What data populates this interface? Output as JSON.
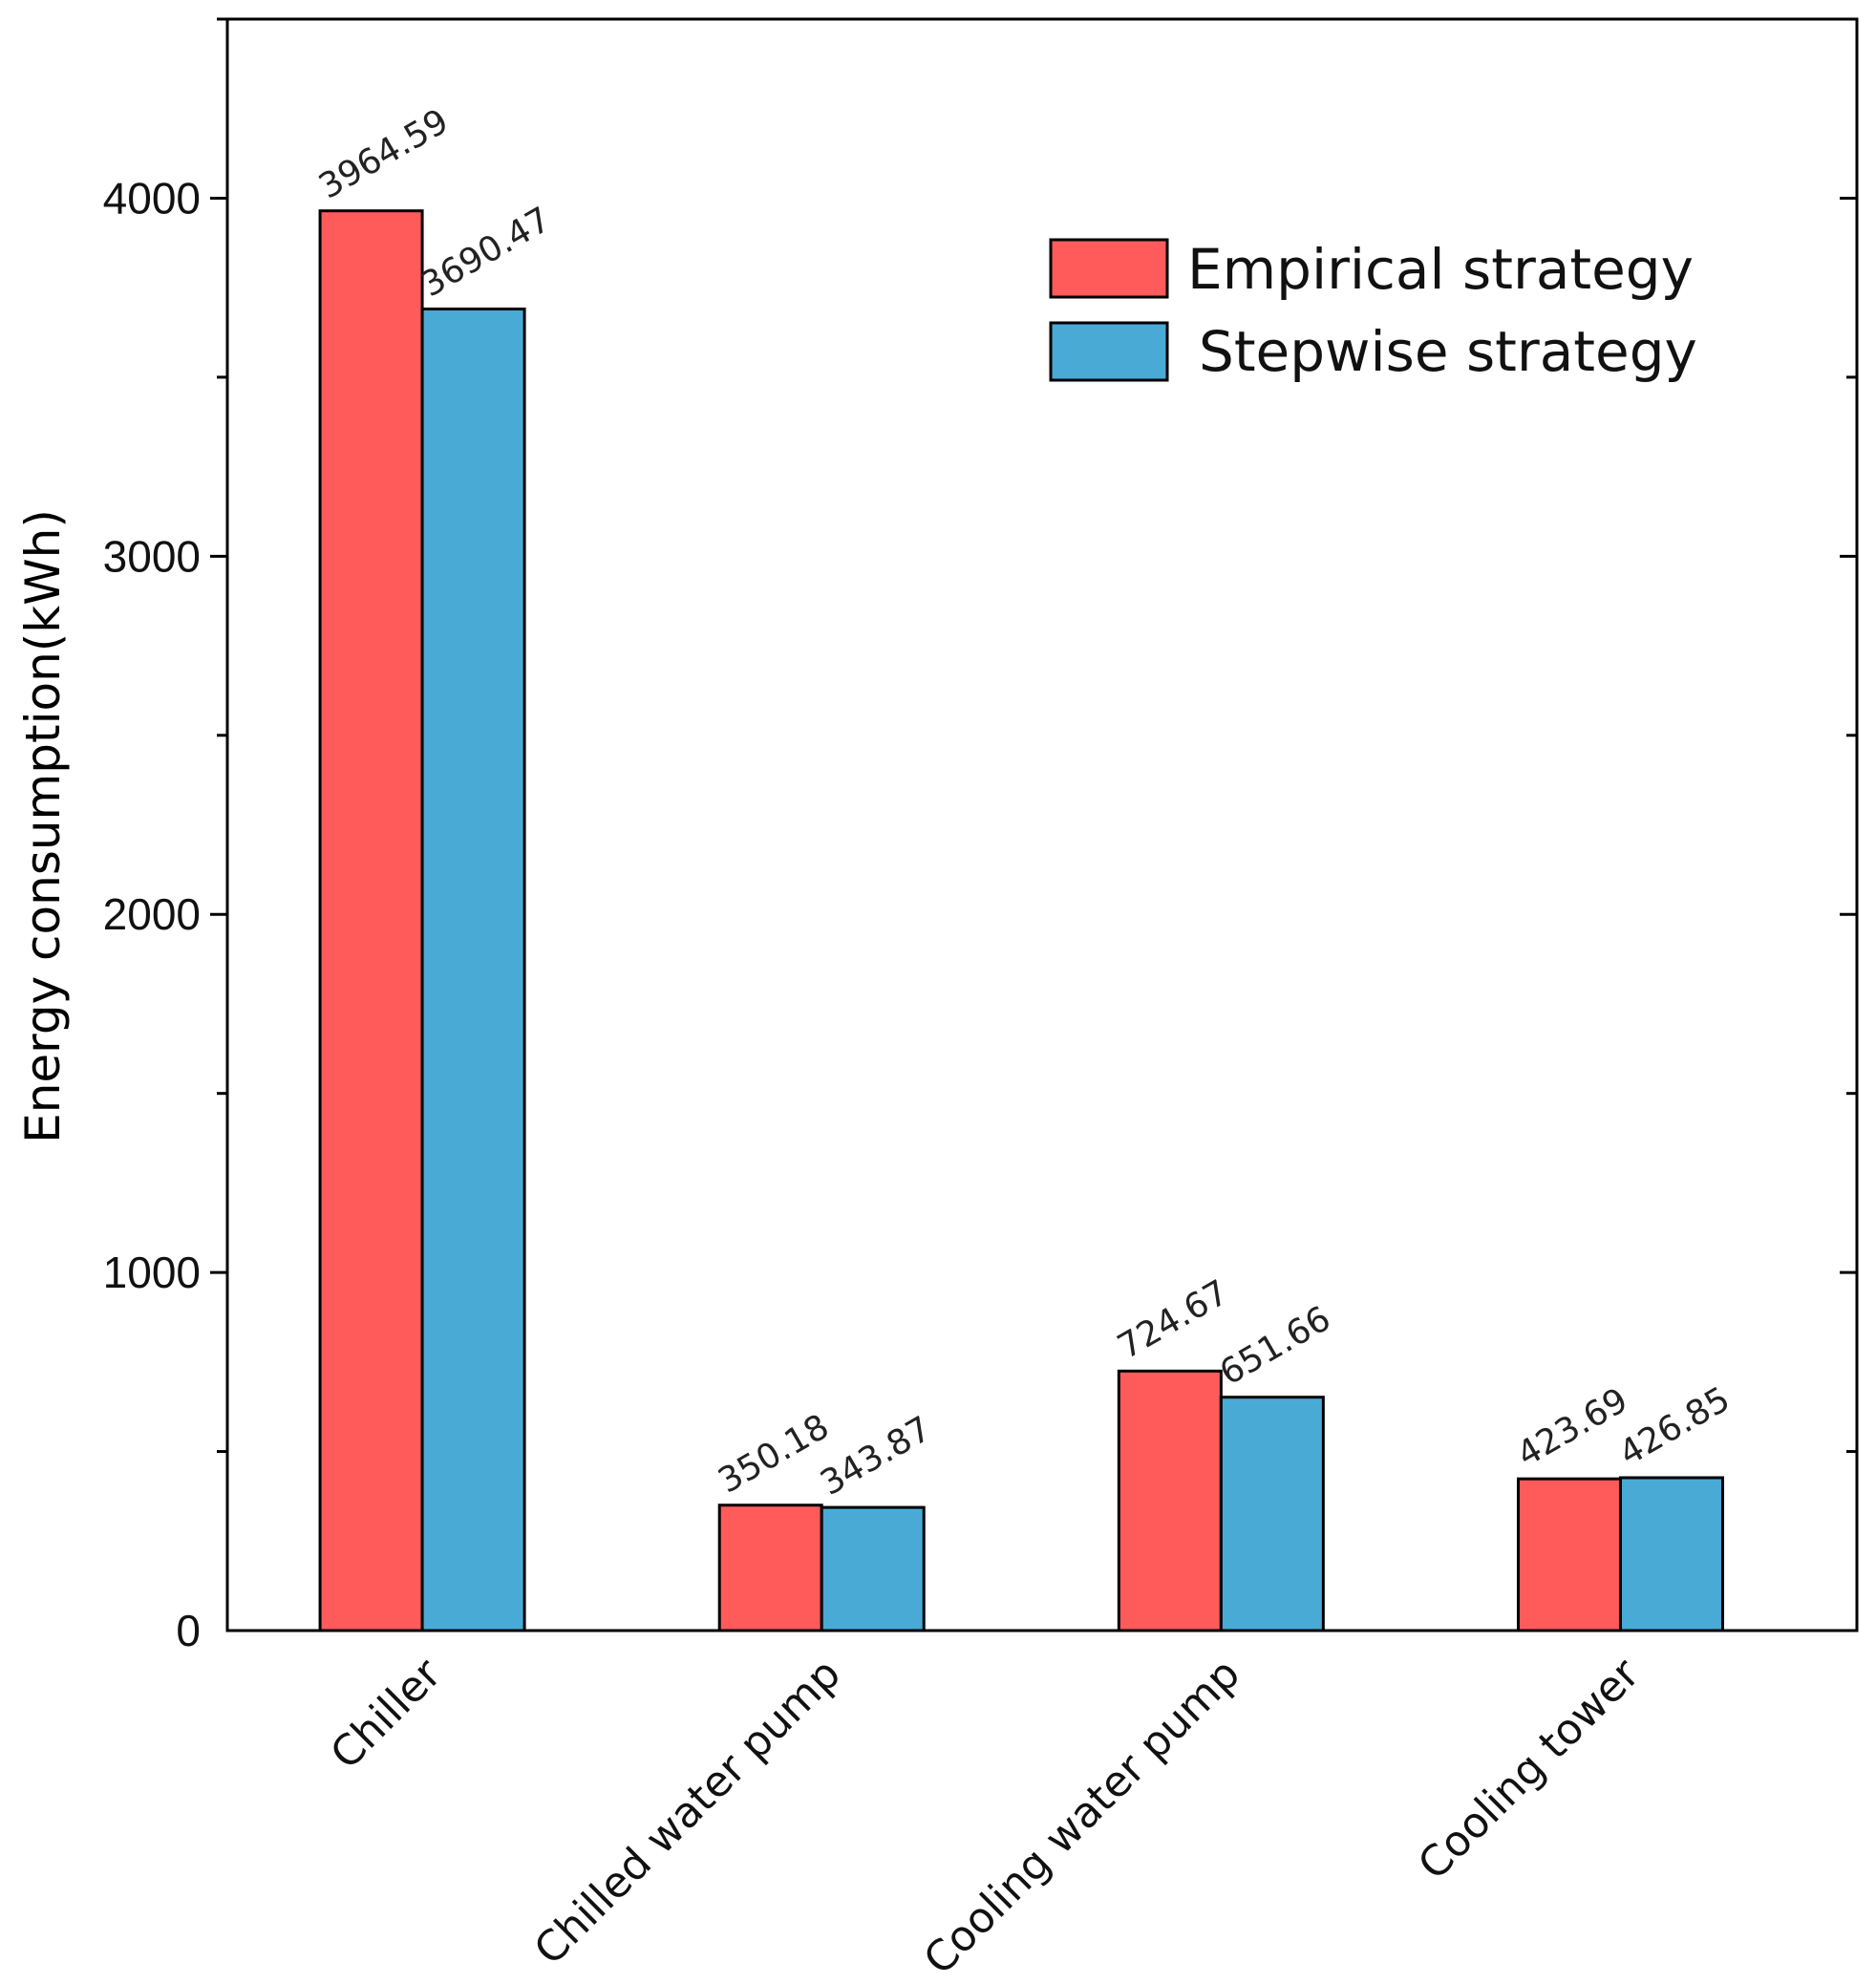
{
  "chart_data": {
    "type": "bar",
    "title": "",
    "xlabel": "",
    "ylabel": "Energy consumption(kWh)",
    "ylim": [
      0,
      4500
    ],
    "yticks": [
      0,
      1000,
      2000,
      3000,
      4000
    ],
    "grid": false,
    "legend_position": "top-right",
    "categories": [
      "Chiller",
      "Chilled water pump",
      "Cooling water pump",
      "Cooling tower"
    ],
    "series": [
      {
        "name": "Empirical strategy",
        "color": "#FF5B5B",
        "values": [
          3964.59,
          350.18,
          724.67,
          423.69
        ],
        "labels": [
          "3964.59",
          "350.18",
          "724.67",
          "423.69"
        ]
      },
      {
        "name": "Stepwise strategy",
        "color": "#4AAAD6",
        "values": [
          3690.47,
          343.87,
          651.66,
          426.85
        ],
        "labels": [
          "3690.47",
          "343.87",
          "651.66",
          "426.85"
        ]
      }
    ]
  }
}
